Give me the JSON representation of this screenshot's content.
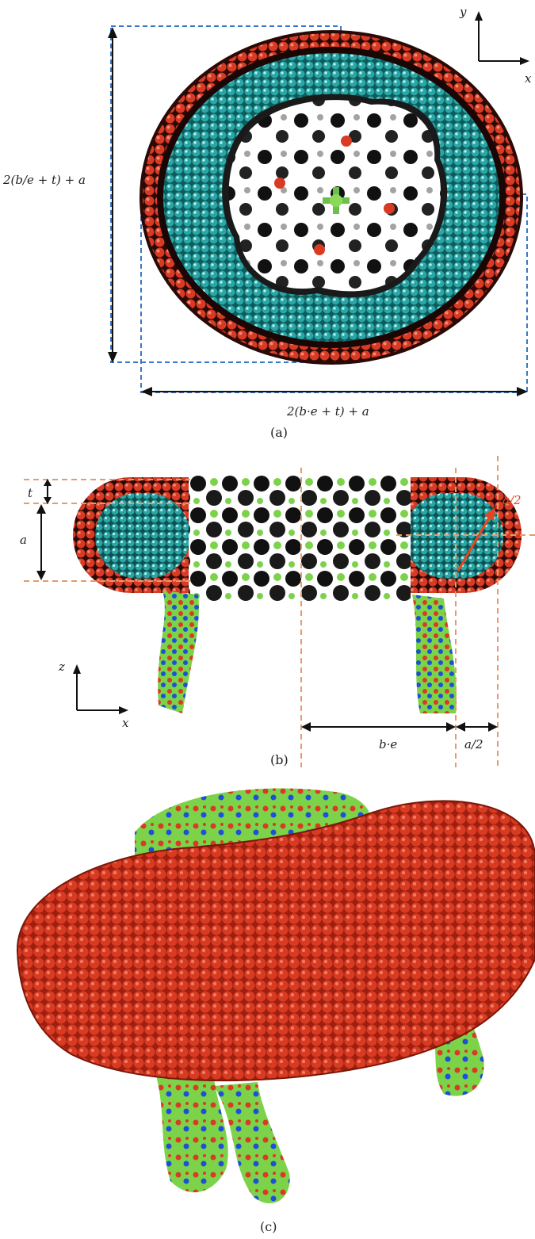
{
  "panel_a": {
    "caption": "(a)",
    "dim_vertical": "2(b/e + t) + a",
    "dim_horizontal": "2(b·e + t) + a",
    "axis_y": "y",
    "axis_x": "x"
  },
  "panel_b": {
    "caption": "(b)",
    "label_t": "t",
    "label_a": "a",
    "label_half_a_red": "a/2",
    "label_be": "b·e",
    "label_half_a": "a/2",
    "axis_z": "z",
    "axis_x": "x"
  },
  "panel_c": {
    "caption": "(c)"
  },
  "colors": {
    "shell_red": "#d93a24",
    "shell_dark": "#3a0d08",
    "core_teal": "#29b3b3",
    "protein_green": "#7cd34a",
    "protein_blue": "#1f4fd6",
    "dash_blue": "#3a78c8",
    "dash_orange": "#e79a6a"
  }
}
